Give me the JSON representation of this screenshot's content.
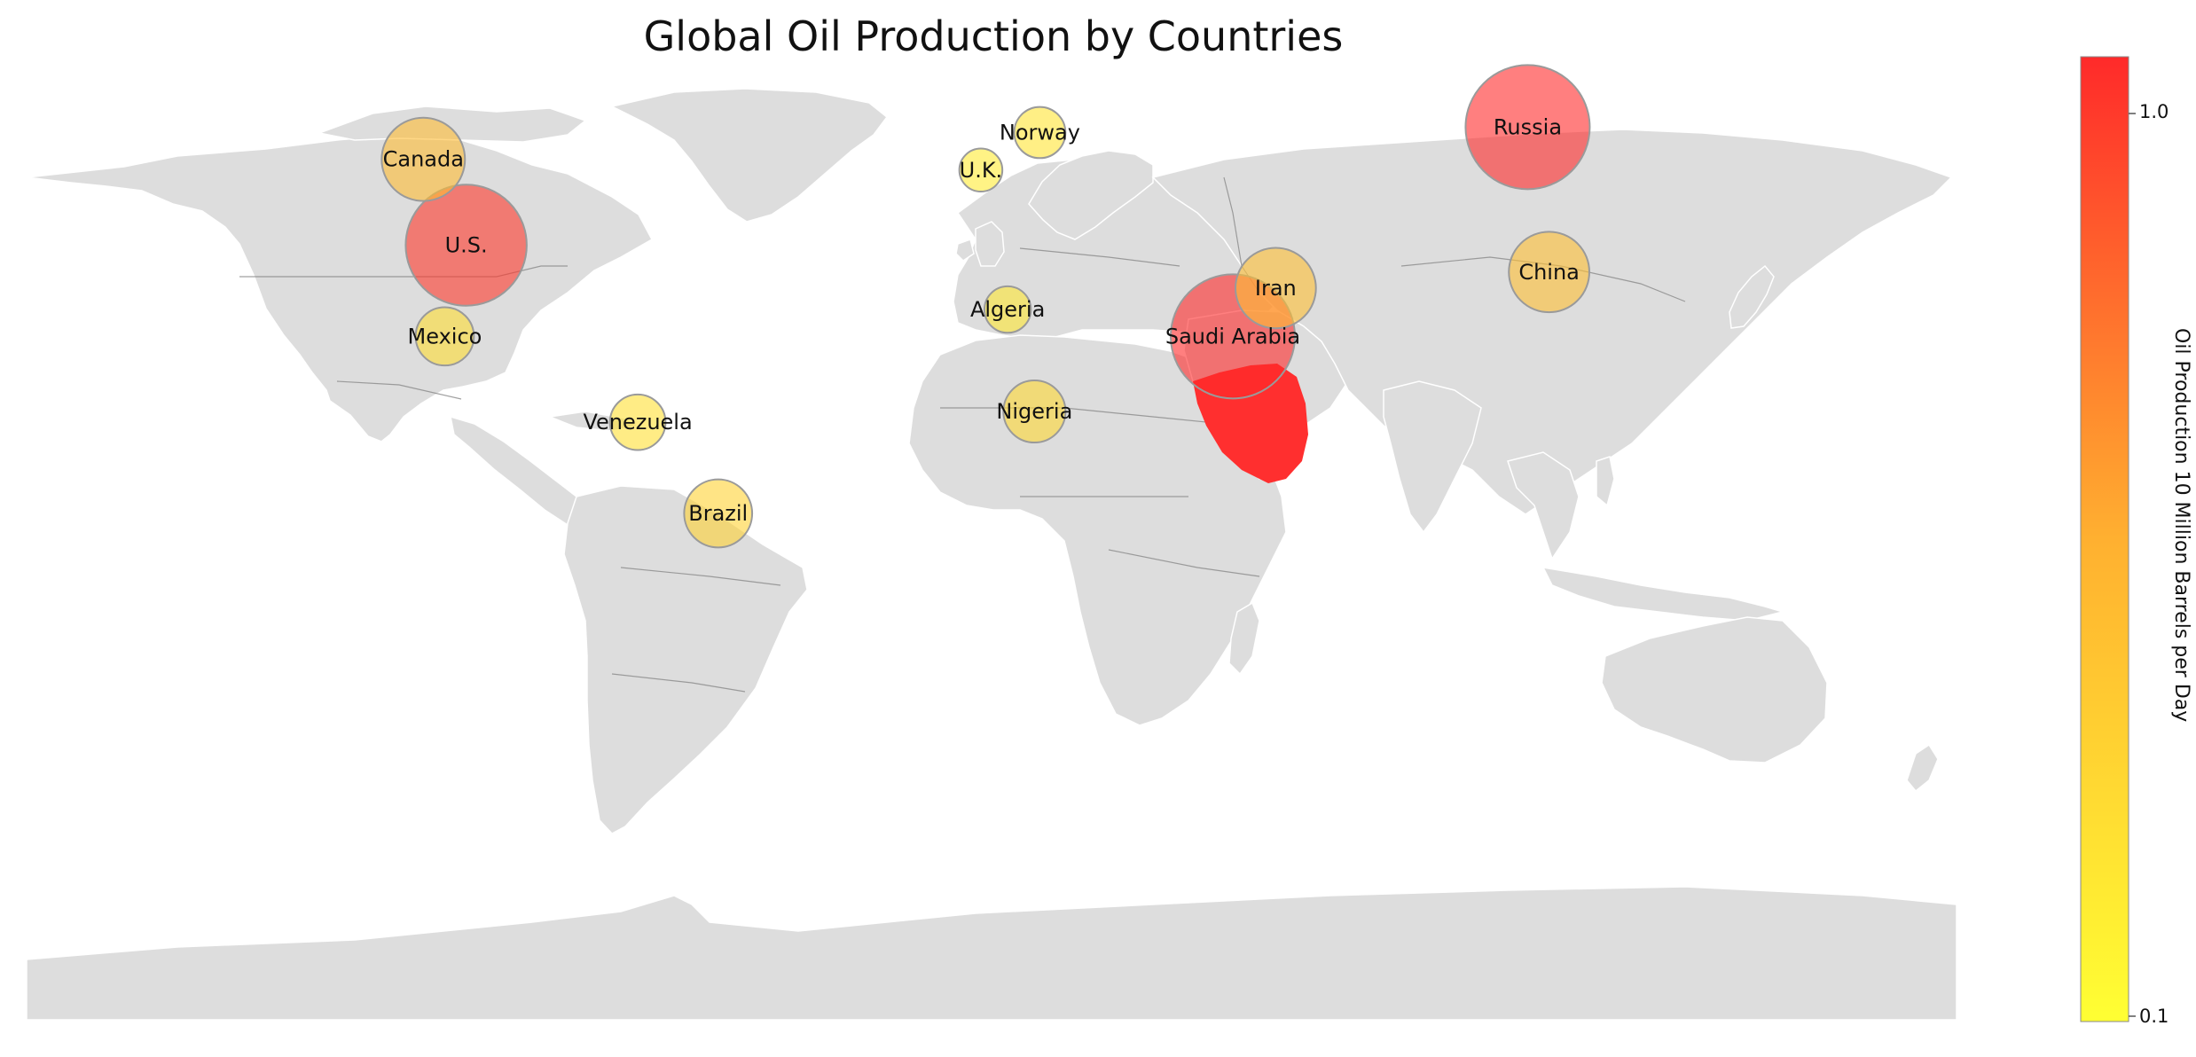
{
  "title": "Global Oil Production by Countries",
  "colorbar": {
    "label": "Oil Production 10 Million Barrels per Day",
    "min": 0.1,
    "max": 1.0,
    "ticks": [
      "1.0",
      "0.1"
    ],
    "color_low": "#ffff33",
    "color_high": "#ff2a2a"
  },
  "colors": {
    "land": "#dddddd",
    "border": "#8a8a8a",
    "bubble_edge": "#9a9a9a",
    "saudi_land": "#ff2f2f"
  },
  "chart_data": {
    "type": "bubble-map",
    "projection": "equirectangular",
    "value_unit": "10 million barrels per day",
    "countries": [
      {
        "name": "Russia",
        "lon": 100,
        "lat": 62,
        "value": 1.0
      },
      {
        "name": "U.S.",
        "lon": -98,
        "lat": 40,
        "value": 0.95
      },
      {
        "name": "Saudi Arabia",
        "lon": 45,
        "lat": 23,
        "value": 1.0
      },
      {
        "name": "Canada",
        "lon": -106,
        "lat": 56,
        "value": 0.45
      },
      {
        "name": "China",
        "lon": 104,
        "lat": 35,
        "value": 0.42
      },
      {
        "name": "Iran",
        "lon": 53,
        "lat": 32,
        "value": 0.42
      },
      {
        "name": "Brazil",
        "lon": -51,
        "lat": -10,
        "value": 0.3
      },
      {
        "name": "Venezuela",
        "lon": -66,
        "lat": 7,
        "value": 0.2
      },
      {
        "name": "Mexico",
        "lon": -102,
        "lat": 23,
        "value": 0.22
      },
      {
        "name": "Nigeria",
        "lon": 8,
        "lat": 9,
        "value": 0.25
      },
      {
        "name": "Norway",
        "lon": 9,
        "lat": 61,
        "value": 0.17
      },
      {
        "name": "Algeria",
        "lon": 3,
        "lat": 28,
        "value": 0.14
      },
      {
        "name": "U.K.",
        "lon": -2,
        "lat": 54,
        "value": 0.12
      }
    ]
  }
}
